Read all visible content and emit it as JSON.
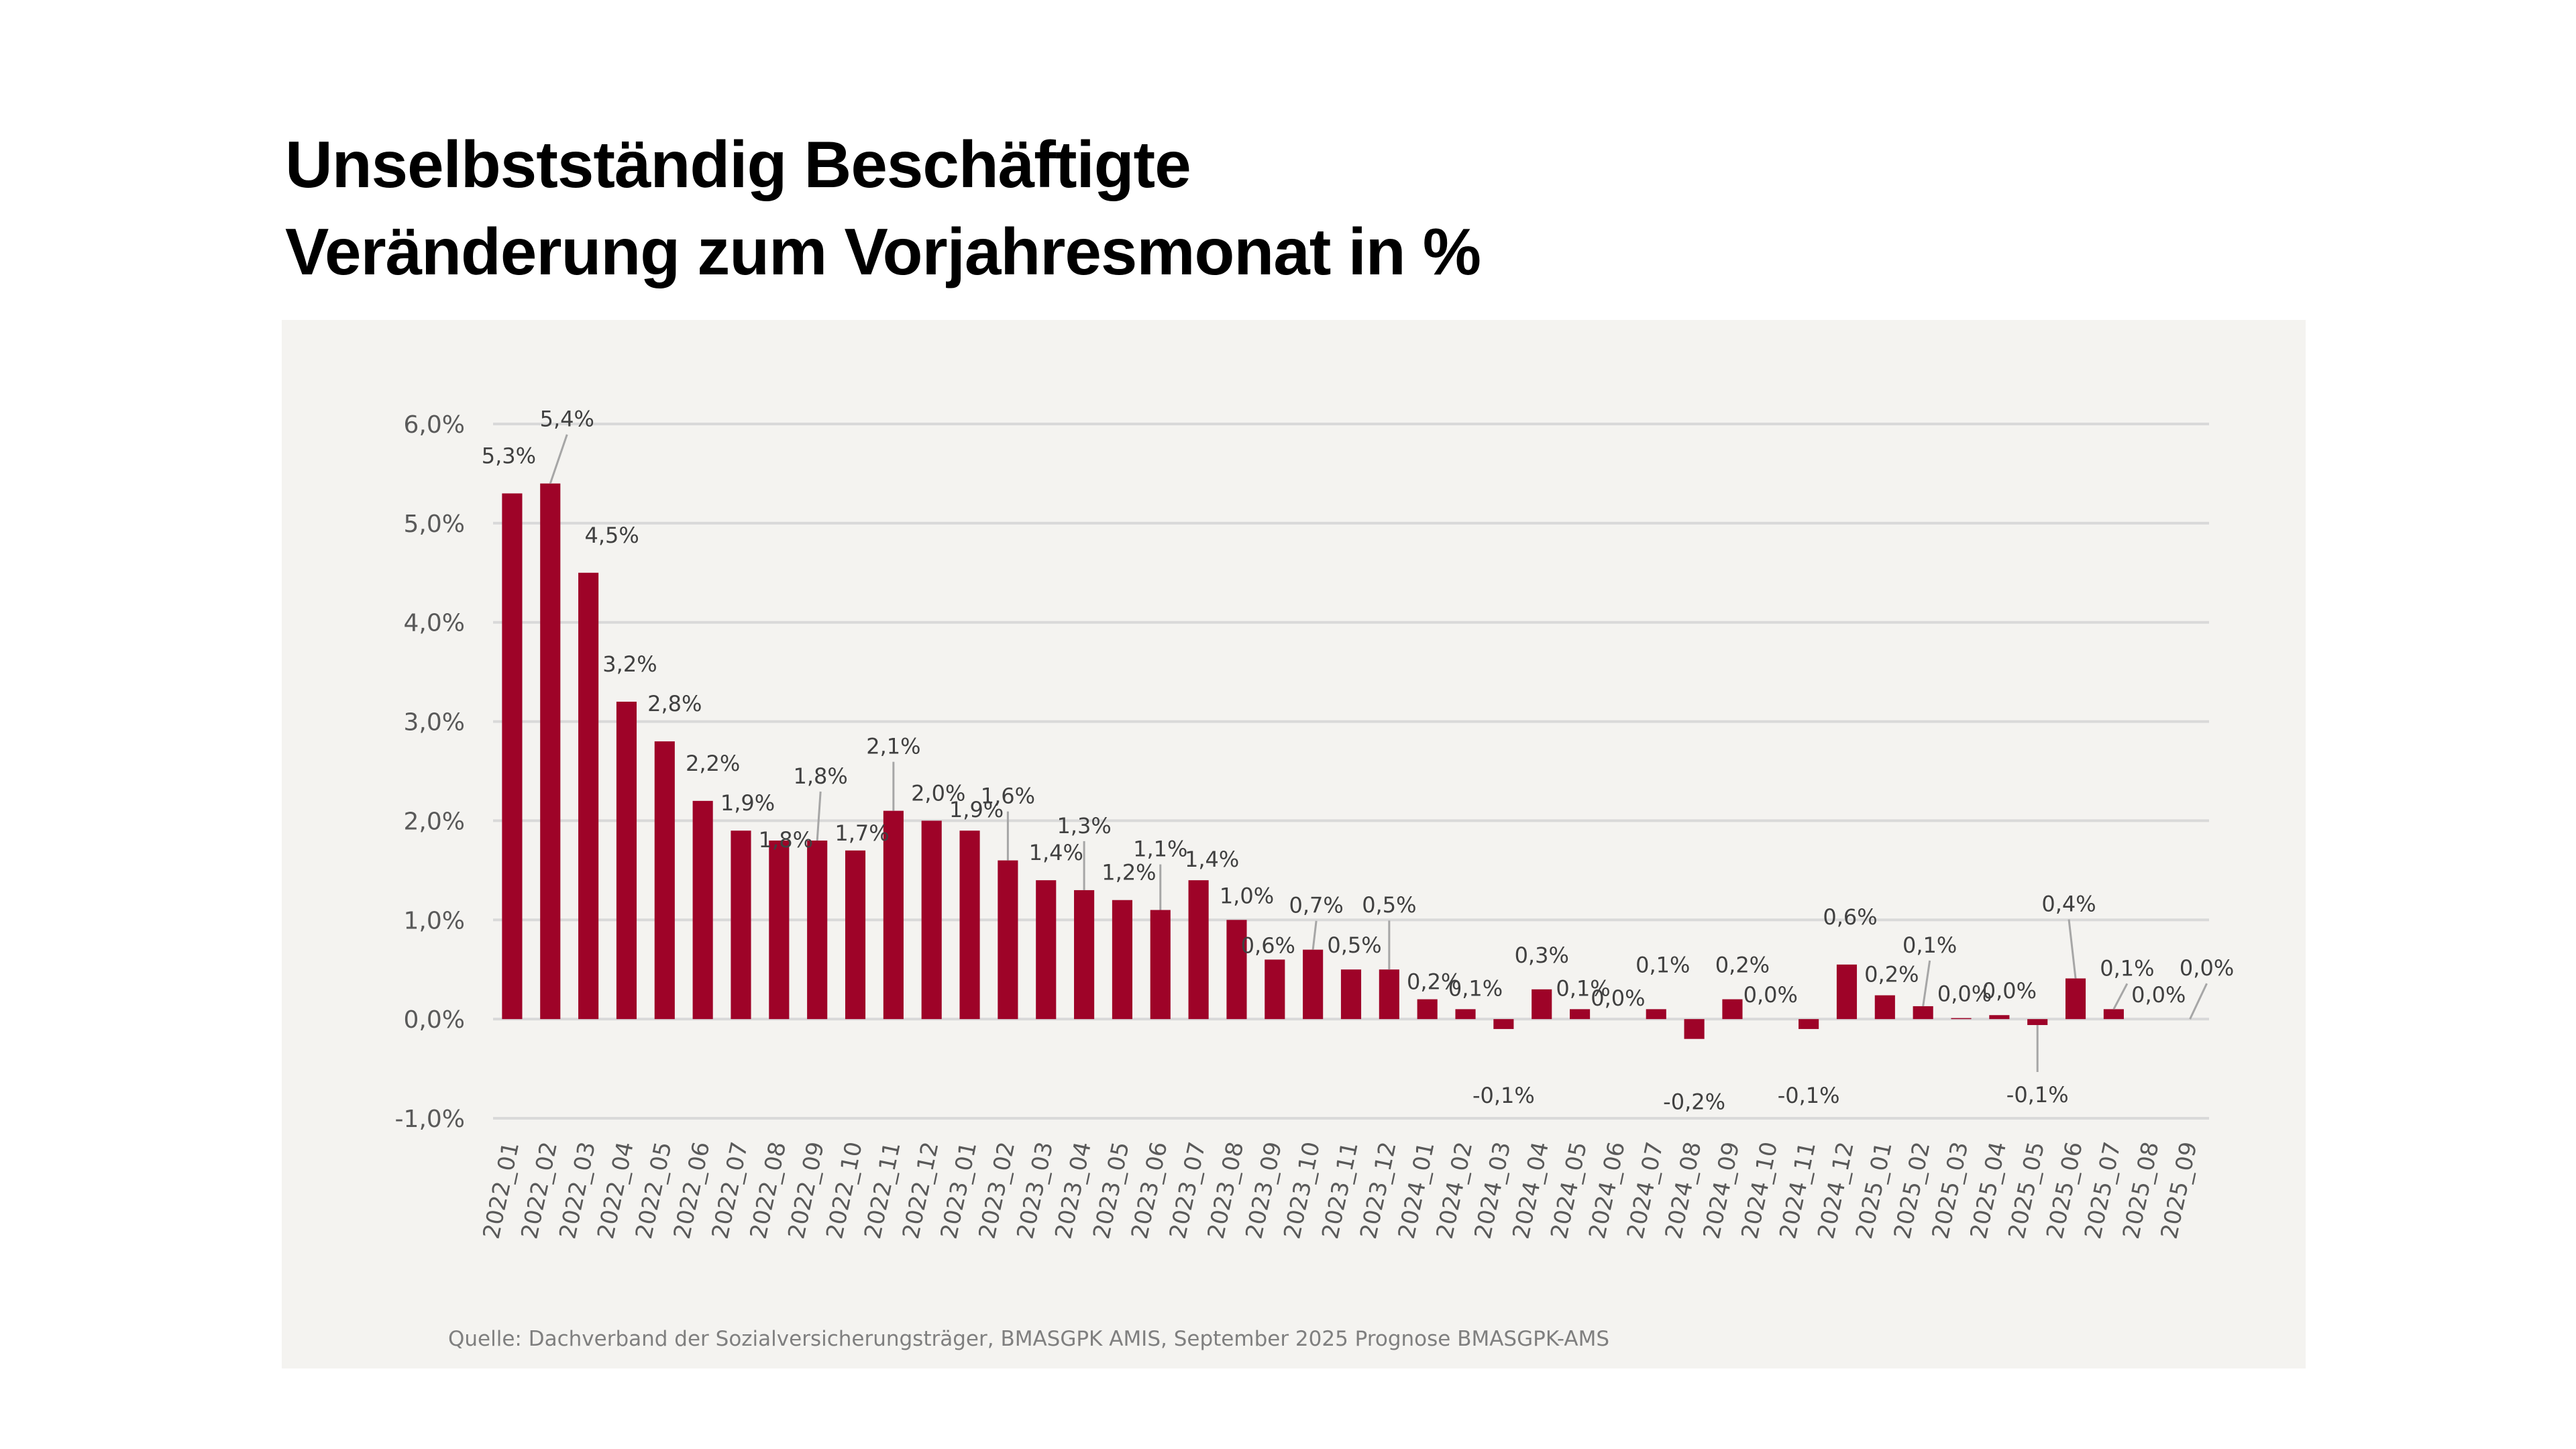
{
  "title": {
    "line1": "Unselbstständig Beschäftigte",
    "line2": "Veränderung zum Vorjahresmonat in %"
  },
  "source": "Quelle: Dachverband der Sozialversicherungsträger, BMASGPK AMIS, September 2025 Prognose BMASGPK-AMS",
  "colors": {
    "bar": "#9e0328",
    "grid": "#d9d9d9",
    "panel": "#f4f3f0",
    "leader": "#a6a6a6"
  },
  "chart_data": {
    "type": "bar",
    "title": "Unselbstständig Beschäftigte – Veränderung zum Vorjahresmonat in %",
    "xlabel": "",
    "ylabel": "",
    "ylim": [
      -1.0,
      6.0
    ],
    "yticks": [
      -1.0,
      0.0,
      1.0,
      2.0,
      3.0,
      4.0,
      5.0,
      6.0
    ],
    "ytick_labels": [
      "-1,0%",
      "0,0%",
      "1,0%",
      "2,0%",
      "3,0%",
      "4,0%",
      "5,0%",
      "6,0%"
    ],
    "grid": true,
    "legend": "none",
    "categories": [
      "2022_01",
      "2022_02",
      "2022_03",
      "2022_04",
      "2022_05",
      "2022_06",
      "2022_07",
      "2022_08",
      "2022_09",
      "2022_10",
      "2022_11",
      "2022_12",
      "2023_01",
      "2023_02",
      "2023_03",
      "2023_04",
      "2023_05",
      "2023_06",
      "2023_07",
      "2023_08",
      "2023_09",
      "2023_10",
      "2023_11",
      "2023_12",
      "2024_01",
      "2024_02",
      "2024_03",
      "2024_04",
      "2024_05",
      "2024_06",
      "2024_07",
      "2024_08",
      "2024_09",
      "2024_10",
      "2024_11",
      "2024_12",
      "2025_01",
      "2025_02",
      "2025_03",
      "2025_04",
      "2025_05",
      "2025_06",
      "2025_07",
      "2025_08",
      "2025_09"
    ],
    "values": [
      5.3,
      5.4,
      4.5,
      3.2,
      2.8,
      2.2,
      1.9,
      1.8,
      1.8,
      1.7,
      2.1,
      2.0,
      1.9,
      1.6,
      1.4,
      1.3,
      1.2,
      1.1,
      1.4,
      1.0,
      0.6,
      0.7,
      0.5,
      0.5,
      0.2,
      0.1,
      -0.1,
      0.3,
      0.1,
      0.0,
      0.1,
      -0.2,
      0.2,
      0.0,
      -0.1,
      0.55,
      0.24,
      0.13,
      0.01,
      0.04,
      -0.06,
      0.41,
      0.1,
      0.0,
      0.0
    ],
    "data_labels": [
      "5,3%",
      "5,4%",
      "4,5%",
      "3,2%",
      "2,8%",
      "2,2%",
      "1,9%",
      "1,8%",
      "1,8%",
      "1,7%",
      "2,1%",
      "2,0%",
      "1,9%",
      "1,6%",
      "1,4%",
      "1,3%",
      "1,2%",
      "1,1%",
      "1,4%",
      "1,0%",
      "0,6%",
      "0,7%",
      "0,5%",
      "0,5%",
      "0,2%",
      "0,1%",
      "-0,1%",
      "0,3%",
      "0,1%",
      "0,0%",
      "0,1%",
      "-0,2%",
      "0,2%",
      "0,0%",
      "-0,1%",
      "0,6%",
      "0,2%",
      "0,1%",
      "0,0%",
      "0,0%",
      "-0,1%",
      "0,4%",
      "0,1%",
      "0,0%",
      "0,0%"
    ]
  }
}
